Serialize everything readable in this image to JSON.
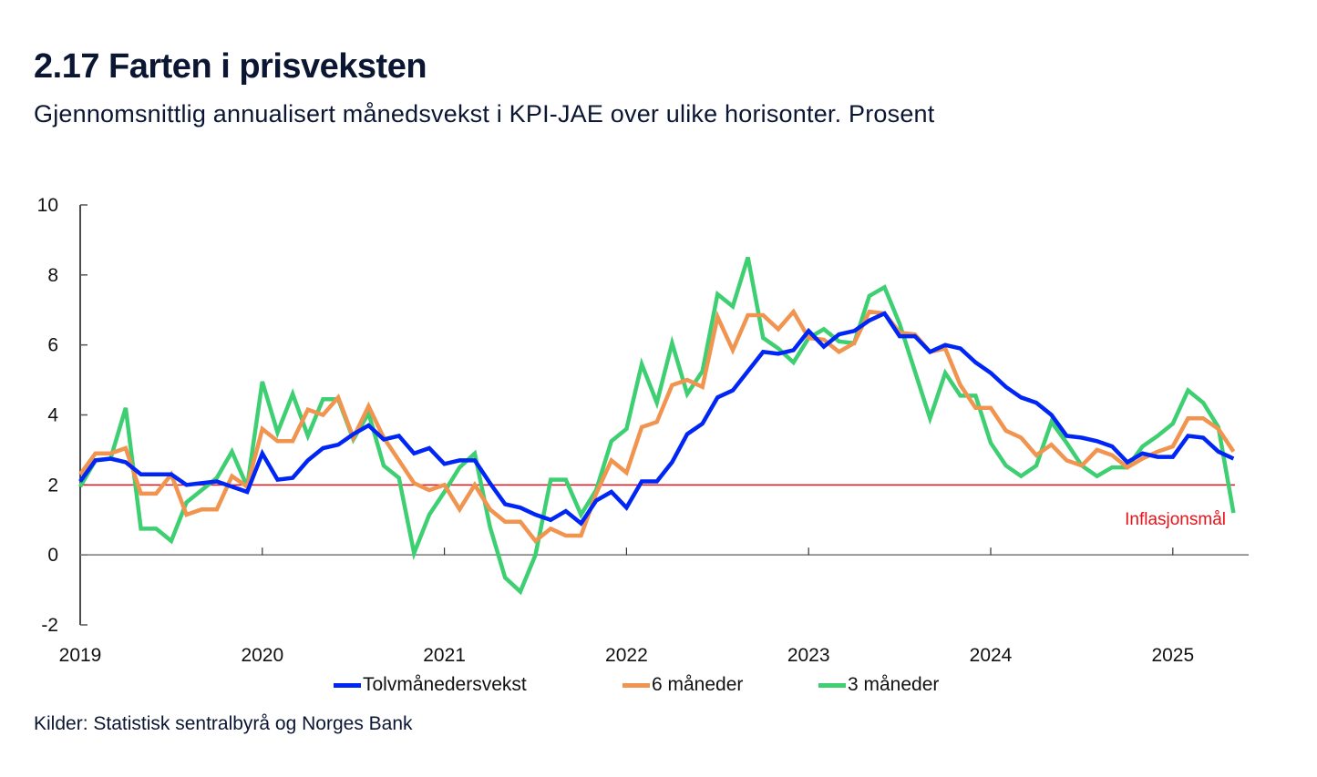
{
  "header": {
    "title": "2.17 Farten i prisveksten",
    "subtitle": "Gjennomsnittlig annualisert månedsvekst i KPI-JAE over ulike horisonter. Prosent"
  },
  "footer": {
    "source": "Kilder: Statistisk sentralbyrå og Norges Bank"
  },
  "colors": {
    "blue": "#0026f5",
    "orange": "#f0944f",
    "green": "#3ecf72",
    "target": "#e8121b",
    "axis": "#111111"
  },
  "chart_data": {
    "type": "line",
    "title": "2.17 Farten i prisveksten",
    "subtitle": "Gjennomsnittlig annualisert månedsvekst i KPI-JAE over ulike horisonter. Prosent",
    "xlabel": "",
    "ylabel": "Prosent",
    "x_start": "2019-01",
    "x_frequency": "monthly",
    "x_ticks": [
      "2019",
      "2020",
      "2021",
      "2022",
      "2023",
      "2024",
      "2025"
    ],
    "y_ticks": [
      "-2",
      "0",
      "2",
      "4",
      "6",
      "8",
      "10"
    ],
    "ylim": [
      -2,
      10
    ],
    "xlim": [
      "2019-01",
      "2025-05"
    ],
    "grid": false,
    "legend_position": "bottom",
    "reference_line": {
      "value": 2,
      "label": "Inflasjonsmål"
    },
    "series": [
      {
        "name": "Tolvmånedersvekst",
        "color": "#0026f5",
        "values": [
          2.1,
          2.7,
          2.75,
          2.65,
          2.3,
          2.3,
          2.3,
          2.0,
          2.05,
          2.1,
          1.95,
          1.8,
          2.9,
          2.15,
          2.2,
          2.7,
          3.05,
          3.15,
          3.45,
          3.7,
          3.3,
          3.4,
          2.9,
          3.05,
          2.6,
          2.7,
          2.7,
          2.05,
          1.45,
          1.35,
          1.15,
          1.0,
          1.25,
          0.9,
          1.55,
          1.8,
          1.35,
          2.1,
          2.1,
          2.65,
          3.45,
          3.75,
          4.5,
          4.7,
          5.25,
          5.8,
          5.75,
          5.85,
          6.4,
          5.95,
          6.3,
          6.4,
          6.7,
          6.9,
          6.25,
          6.25,
          5.8,
          6.0,
          5.9,
          5.5,
          5.2,
          4.8,
          4.5,
          4.35,
          4.0,
          3.4,
          3.35,
          3.25,
          3.1,
          2.65,
          2.9,
          2.8,
          2.8,
          3.4,
          3.35,
          2.95,
          2.75
        ]
      },
      {
        "name": "6 måneder",
        "color": "#f0944f",
        "values": [
          2.3,
          2.9,
          2.9,
          3.05,
          1.75,
          1.75,
          2.3,
          1.15,
          1.3,
          1.3,
          2.25,
          1.95,
          3.6,
          3.25,
          3.25,
          4.15,
          4.0,
          4.5,
          3.35,
          4.25,
          3.35,
          2.7,
          2.05,
          1.85,
          2.0,
          1.3,
          2.0,
          1.3,
          0.95,
          0.95,
          0.4,
          0.75,
          0.55,
          0.55,
          1.75,
          2.7,
          2.35,
          3.65,
          3.8,
          4.85,
          5.0,
          4.8,
          6.8,
          5.85,
          6.85,
          6.85,
          6.45,
          6.95,
          6.2,
          6.15,
          5.8,
          6.05,
          6.95,
          6.9,
          6.35,
          6.3,
          5.8,
          5.9,
          4.85,
          4.2,
          4.2,
          3.55,
          3.35,
          2.85,
          3.15,
          2.7,
          2.55,
          3.0,
          2.85,
          2.5,
          2.75,
          2.95,
          3.1,
          3.9,
          3.9,
          3.6,
          2.95
        ]
      },
      {
        "name": "3 måneder",
        "color": "#3ecf72",
        "values": [
          1.95,
          2.7,
          2.75,
          4.2,
          0.75,
          0.75,
          0.4,
          1.5,
          1.85,
          2.2,
          2.95,
          1.95,
          4.95,
          3.5,
          4.6,
          3.4,
          4.45,
          4.45,
          3.3,
          4.05,
          2.55,
          2.2,
          0.05,
          1.15,
          1.8,
          2.5,
          2.9,
          0.8,
          -0.65,
          -1.05,
          0.0,
          2.15,
          2.15,
          1.15,
          1.85,
          3.25,
          3.6,
          5.45,
          4.35,
          6.05,
          4.6,
          5.25,
          7.45,
          7.1,
          8.5,
          6.2,
          5.9,
          5.5,
          6.2,
          6.45,
          6.1,
          6.05,
          7.4,
          7.65,
          6.6,
          5.25,
          3.9,
          5.2,
          4.55,
          4.55,
          3.2,
          2.55,
          2.25,
          2.55,
          3.8,
          3.2,
          2.55,
          2.25,
          2.5,
          2.5,
          3.1,
          3.4,
          3.75,
          4.7,
          4.35,
          3.65,
          1.2
        ]
      }
    ]
  }
}
